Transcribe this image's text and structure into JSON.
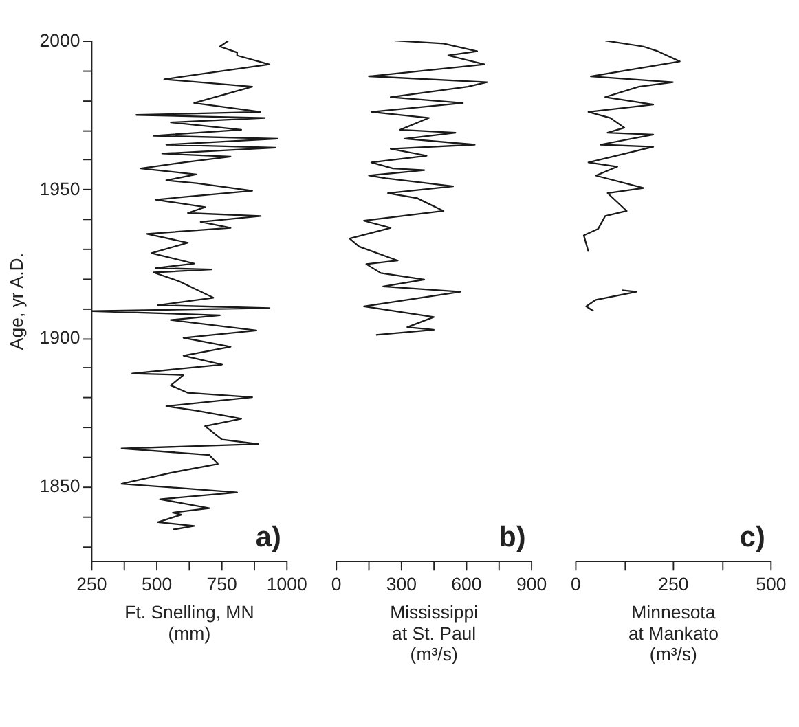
{
  "chart_data": [
    {
      "type": "line",
      "orientation": "horizontal",
      "color": "#1a1a1a",
      "marker": "none",
      "line_style": "solid",
      "grid": false,
      "ylabel": "Age, yr A.D.",
      "xlabel": "Ft. Snelling, MN\n(mm)",
      "annotations": [
        "a)"
      ],
      "xlim": [
        250,
        1000
      ],
      "xticks": [
        250,
        {
          "value": 375,
          "label": null
        },
        500,
        {
          "value": 625,
          "label": null
        },
        750,
        {
          "value": 875,
          "label": null
        },
        1000
      ],
      "ylim": [
        1825,
        2000
      ],
      "yticks": [
        {
          "value": 1830,
          "label": null
        },
        {
          "value": 1840,
          "label": null
        },
        1850,
        {
          "value": 1860,
          "label": null
        },
        {
          "value": 1870,
          "label": null
        },
        {
          "value": 1880,
          "label": null
        },
        {
          "value": 1890,
          "label": null
        },
        1900,
        {
          "value": 1910,
          "label": null
        },
        {
          "value": 1920,
          "label": null
        },
        {
          "value": 1930,
          "label": null
        },
        {
          "value": 1940,
          "label": null
        },
        1950,
        {
          "value": 1960,
          "label": null
        },
        {
          "value": 1970,
          "label": null
        },
        {
          "value": 1980,
          "label": null
        },
        {
          "value": 1990,
          "label": null
        },
        2000
      ],
      "x": [
        2000,
        1998,
        1996,
        1995,
        1992,
        1987,
        1984.5,
        1979,
        1976,
        1975,
        1974,
        1972.5,
        1970,
        1968,
        1967,
        1965,
        1964,
        1962,
        1961,
        1959,
        1957,
        1955,
        1953,
        1952,
        1949.5,
        1946.5,
        1944,
        1942,
        1941,
        1939,
        1937,
        1935,
        1932,
        1928.5,
        1925,
        1923.5,
        1923,
        1922,
        1919,
        1913.5,
        1911,
        1910,
        1909,
        1907.6,
        1906,
        1902.5,
        1900,
        1897,
        1894,
        1891,
        1888,
        1887.5,
        1884,
        1881.5,
        1880,
        1877,
        1875.5,
        1872.8,
        1870.3,
        1865.8,
        1864.3,
        1862.8,
        1860.6,
        1857.6,
        1854.6,
        1850.9,
        1849.4,
        1848,
        1845.7,
        1842.7,
        1841.2,
        1840.5,
        1838,
        1836.7,
        1835.5
      ],
      "values": [
        778,
        745,
        811,
        811,
        934,
        531,
        869,
        646,
        901,
        424,
        918,
        556,
        827,
        490,
        967,
        539,
        959,
        523,
        786,
        605,
        441,
        655,
        539,
        655,
        869,
        498,
        688,
        622,
        901,
        671,
        786,
        465,
        622,
        482,
        646,
        498,
        712,
        490,
        589,
        720,
        507,
        934,
        255,
        745,
        556,
        885,
        605,
        786,
        605,
        753,
        408,
        605,
        556,
        622,
        869,
        539,
        655,
        827,
        688,
        753,
        893,
        367,
        704,
        737,
        556,
        367,
        605,
        811,
        515,
        704,
        564,
        597,
        507,
        646,
        564
      ]
    },
    {
      "type": "line",
      "orientation": "horizontal",
      "color": "#1a1a1a",
      "marker": "none",
      "line_style": "solid",
      "grid": false,
      "tick_labels": "x",
      "xlabel": "Mississippi\nat St. Paul\n(m³/s)",
      "annotations": [
        "b)"
      ],
      "xlim": [
        0,
        900
      ],
      "xticks": [
        0,
        {
          "value": 150,
          "label": null
        },
        300,
        {
          "value": 450,
          "label": null
        },
        600,
        {
          "value": 750,
          "label": null
        },
        900
      ],
      "ylim": [
        1825,
        2000
      ],
      "yticks": [
        1850,
        1900,
        1950,
        2000
      ],
      "x": [
        2000,
        1999,
        1996.4,
        1995,
        1992,
        1988,
        1986,
        1984.5,
        1981,
        1979,
        1976,
        1974,
        1970,
        1969,
        1967,
        1965,
        1963.6,
        1961.3,
        1959,
        1957,
        1956.4,
        1954.6,
        1953.7,
        1951,
        1948.7,
        1947,
        1942.7,
        1939.4,
        1937,
        1933.4,
        1930.7,
        1926,
        1924.8,
        1921.8,
        1919.6,
        1917.3,
        1915.5,
        1910.6,
        1907,
        1903.6,
        1902.7,
        1901
      ],
      "values": [
        275,
        497,
        652,
        519,
        686,
        153,
        697,
        608,
        253,
        586,
        164,
        430,
        297,
        552,
        319,
        641,
        253,
        419,
        164,
        264,
        408,
        153,
        230,
        541,
        241,
        375,
        497,
        130,
        253,
        64,
        108,
        286,
        141,
        208,
        408,
        219,
        575,
        130,
        452,
        330,
        452,
        186
      ]
    },
    {
      "type": "line",
      "orientation": "horizontal",
      "color": "#1a1a1a",
      "marker": "none",
      "line_style": "solid",
      "grid": false,
      "tick_labels": "x",
      "xlabel": "Minnesota\nat Mankato\n(m³/s)",
      "annotations": [
        "c)"
      ],
      "xlim": [
        0,
        500
      ],
      "xticks": [
        0,
        {
          "value": 125,
          "label": null
        },
        250,
        {
          "value": 375,
          "label": null
        },
        500
      ],
      "ylim": [
        1825,
        2000
      ],
      "yticks": [
        1850,
        1900,
        1950,
        2000
      ],
      "x": [
        2000,
        1998,
        1996.4,
        1993,
        1988,
        1986,
        1984.5,
        1981,
        1978.5,
        1976,
        1974,
        1970.7,
        1969,
        1968.4,
        1965,
        1964.3,
        1959,
        1957.6,
        1954.6,
        1950.4,
        1948.7,
        1942.7,
        1941,
        1936.7,
        1934.5,
        1929,
        1922,
        1916,
        1915.5,
        1912.8,
        1910.6,
        1909
      ],
      "values": [
        77,
        175,
        212,
        268,
        40,
        250,
        163,
        77,
        200,
        34,
        90,
        126,
        83,
        200,
        65,
        200,
        34,
        108,
        53,
        175,
        83,
        132,
        77,
        59,
        22,
        34,
        null,
        120,
        157,
        53,
        28,
        47
      ]
    }
  ]
}
